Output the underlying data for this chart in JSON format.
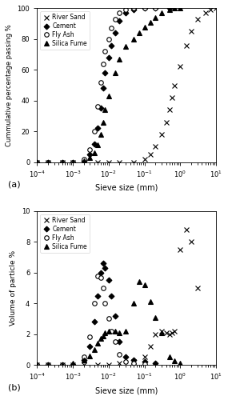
{
  "xlabel": "Sieve size (mm)",
  "ylabel_a": "Cummulative percentage passing %",
  "ylabel_b": "Volume of particle %",
  "xlim": [
    0.0001,
    10
  ],
  "ylim_a": [
    0,
    100
  ],
  "ylim_b": [
    0,
    10
  ],
  "river_sand_a_x": [
    0.0001,
    0.0002,
    0.0005,
    0.001,
    0.002,
    0.005,
    0.01,
    0.02,
    0.05,
    0.1,
    0.15,
    0.2,
    0.3,
    0.4,
    0.5,
    0.6,
    0.7,
    1.0,
    1.5,
    2.0,
    3.0,
    5.0,
    7.0,
    10.0
  ],
  "river_sand_a_y": [
    0,
    0,
    0,
    0,
    0,
    0,
    0,
    0,
    0,
    2,
    5,
    10,
    18,
    26,
    34,
    42,
    50,
    62,
    76,
    85,
    93,
    97,
    99,
    100
  ],
  "cement_a_x": [
    0.0001,
    0.0002,
    0.0005,
    0.001,
    0.002,
    0.003,
    0.004,
    0.005,
    0.006,
    0.007,
    0.008,
    0.01,
    0.012,
    0.015,
    0.02,
    0.03,
    0.05,
    0.1,
    0.2,
    0.5
  ],
  "cement_a_y": [
    0,
    0,
    0,
    0,
    1,
    5,
    12,
    22,
    35,
    48,
    58,
    68,
    76,
    84,
    92,
    97,
    99,
    100,
    100,
    100
  ],
  "fly_ash_a_x": [
    0.0001,
    0.0002,
    0.0005,
    0.001,
    0.002,
    0.003,
    0.004,
    0.005,
    0.006,
    0.007,
    0.008,
    0.01,
    0.012,
    0.015,
    0.02,
    0.03,
    0.05,
    0.1,
    0.2
  ],
  "fly_ash_a_y": [
    0,
    0,
    0,
    0,
    2,
    8,
    20,
    36,
    52,
    64,
    72,
    80,
    87,
    93,
    97,
    99,
    100,
    100,
    100
  ],
  "silica_fume_a_x": [
    0.0001,
    0.0002,
    0.0005,
    0.001,
    0.002,
    0.003,
    0.004,
    0.005,
    0.006,
    0.007,
    0.008,
    0.01,
    0.015,
    0.02,
    0.03,
    0.05,
    0.07,
    0.1,
    0.15,
    0.2,
    0.3,
    0.5,
    0.7,
    1.0
  ],
  "silica_fume_a_y": [
    0,
    0,
    0,
    0,
    1,
    3,
    6,
    11,
    18,
    26,
    34,
    43,
    58,
    67,
    75,
    80,
    84,
    88,
    91,
    94,
    97,
    99,
    100,
    100
  ],
  "river_sand_b_x": [
    0.0001,
    0.0002,
    0.0005,
    0.001,
    0.002,
    0.005,
    0.01,
    0.02,
    0.05,
    0.1,
    0.15,
    0.2,
    0.3,
    0.4,
    0.5,
    0.6,
    0.7,
    1.0,
    1.5,
    2.0,
    3.0
  ],
  "river_sand_b_y": [
    0,
    0,
    0,
    0,
    0,
    0,
    0,
    0.1,
    0.2,
    0.5,
    1.2,
    2.0,
    2.2,
    2.1,
    2.0,
    2.1,
    2.2,
    7.5,
    8.8,
    8.0,
    5.0
  ],
  "cement_b_x": [
    0.0001,
    0.0002,
    0.0005,
    0.001,
    0.002,
    0.003,
    0.004,
    0.005,
    0.006,
    0.007,
    0.008,
    0.01,
    0.012,
    0.015,
    0.02,
    0.03,
    0.05,
    0.1,
    0.2
  ],
  "cement_b_y": [
    0,
    0,
    0,
    0,
    0.3,
    1.2,
    2.8,
    4.5,
    6.0,
    6.6,
    6.3,
    5.5,
    4.5,
    3.2,
    1.5,
    0.5,
    0.3,
    0.2,
    0.1
  ],
  "fly_ash_b_x": [
    0.0001,
    0.0002,
    0.0005,
    0.001,
    0.002,
    0.003,
    0.004,
    0.005,
    0.006,
    0.007,
    0.008,
    0.01,
    0.012,
    0.015,
    0.02,
    0.03,
    0.05,
    0.1
  ],
  "fly_ash_b_y": [
    0,
    0,
    0,
    0,
    0.5,
    1.8,
    4.0,
    5.8,
    5.7,
    5.0,
    4.0,
    3.0,
    2.2,
    1.5,
    0.7,
    0.2,
    0.1,
    0.05
  ],
  "silica_fume_b_x": [
    0.0001,
    0.0002,
    0.0005,
    0.001,
    0.002,
    0.003,
    0.004,
    0.005,
    0.006,
    0.007,
    0.008,
    0.01,
    0.015,
    0.02,
    0.03,
    0.05,
    0.07,
    0.1,
    0.15,
    0.2,
    0.3,
    0.5,
    0.7,
    1.0
  ],
  "silica_fume_b_y": [
    0,
    0,
    0,
    0.1,
    0.3,
    0.6,
    1.0,
    1.4,
    1.7,
    1.9,
    2.1,
    2.2,
    2.2,
    2.1,
    2.2,
    4.0,
    5.4,
    5.2,
    4.1,
    3.1,
    2.1,
    0.5,
    0.25,
    0.1
  ]
}
